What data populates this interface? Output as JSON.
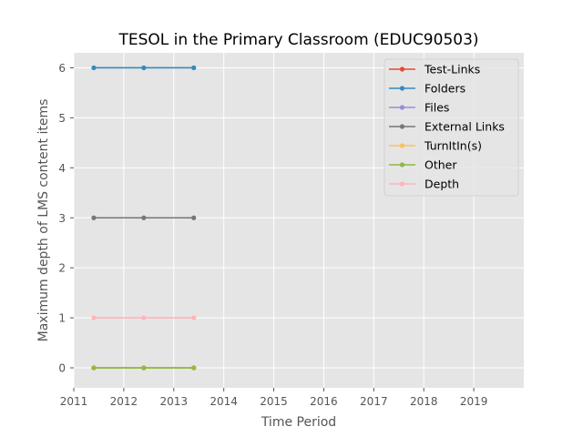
{
  "chart_data": {
    "type": "line",
    "title": "TESOL in the Primary Classroom (EDUC90503)",
    "xlabel": "Time Period",
    "ylabel": "Maximum depth of LMS content items",
    "xlim": [
      2011,
      2020
    ],
    "ylim": [
      -0.4,
      6.3
    ],
    "x_ticks": [
      "2011",
      "2012",
      "2013",
      "2014",
      "2015",
      "2016",
      "2017",
      "2018",
      "2019"
    ],
    "y_ticks": [
      "0",
      "1",
      "2",
      "3",
      "4",
      "5",
      "6"
    ],
    "grid": true,
    "legend_position": "top-right",
    "x": [
      2011.4,
      2012.4,
      2013.4
    ],
    "series": [
      {
        "name": "Test-Links",
        "color": "#E24A33",
        "values": [
          0,
          0,
          0
        ]
      },
      {
        "name": "Folders",
        "color": "#348ABD",
        "values": [
          6,
          6,
          6
        ]
      },
      {
        "name": "Files",
        "color": "#988ED5",
        "values": [
          0,
          0,
          0
        ]
      },
      {
        "name": "External Links",
        "color": "#777777",
        "values": [
          3,
          3,
          3
        ]
      },
      {
        "name": "TurnItIn(s)",
        "color": "#FBC15E",
        "values": [
          0,
          0,
          0
        ]
      },
      {
        "name": "Other",
        "color": "#8EBA42",
        "values": [
          0,
          0,
          0
        ]
      },
      {
        "name": "Depth",
        "color": "#FFB5B8",
        "values": [
          1,
          1,
          1
        ]
      }
    ]
  }
}
